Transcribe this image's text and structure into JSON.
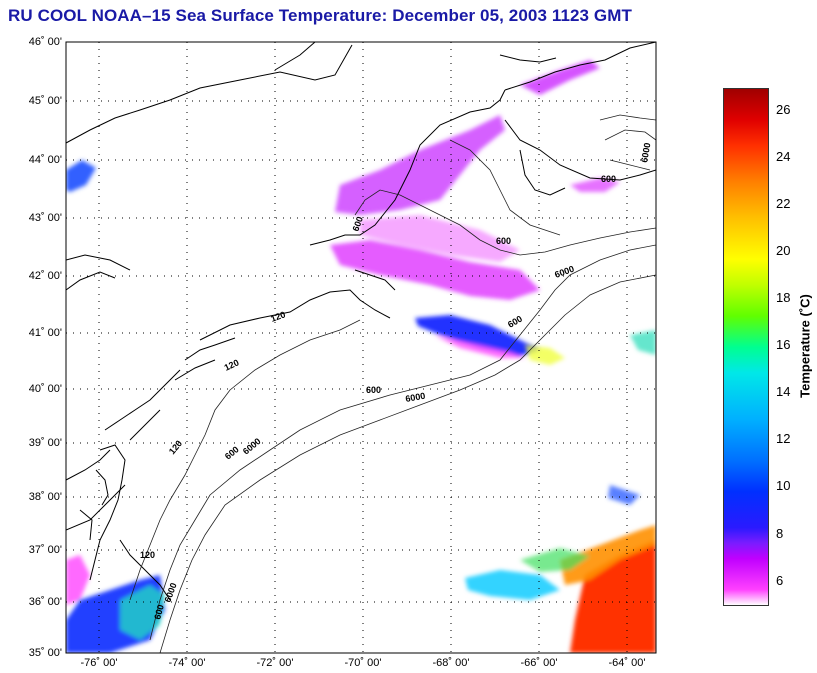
{
  "title": "RU COOL  NOAA–15  Sea Surface Temperature:  December 05, 2003 1123 GMT",
  "map": {
    "lat_labels": [
      "46˚ 00'",
      "45˚ 00'",
      "44˚ 00'",
      "43˚ 00'",
      "42˚ 00'",
      "41˚ 00'",
      "40˚ 00'",
      "39˚ 00'",
      "38˚ 00'",
      "37˚ 00'",
      "36˚ 00'",
      "35˚ 00'"
    ],
    "lon_labels": [
      "-76˚ 00'",
      "-74˚ 00'",
      "-72˚ 00'",
      "-70˚ 00'",
      "-68˚ 00'",
      "-66˚ 00'",
      "-64˚ 00'"
    ],
    "depth_contour_labels": [
      "120",
      "600",
      "6000",
      "120",
      "600",
      "6000",
      "120",
      "6000",
      "600",
      "120",
      "600",
      "6000",
      "600",
      "600",
      "6000",
      "600"
    ],
    "colors": {
      "land_outline": "#000000",
      "grid": "#000000",
      "sst_cold": "#ff40ff",
      "sst_warm": "#ff2000"
    }
  },
  "colorbar": {
    "label": "Temperature (˚C)",
    "ticks": [
      "26",
      "24",
      "22",
      "20",
      "18",
      "16",
      "14",
      "12",
      "10",
      "8",
      "6"
    ],
    "range": [
      5,
      27
    ]
  }
}
